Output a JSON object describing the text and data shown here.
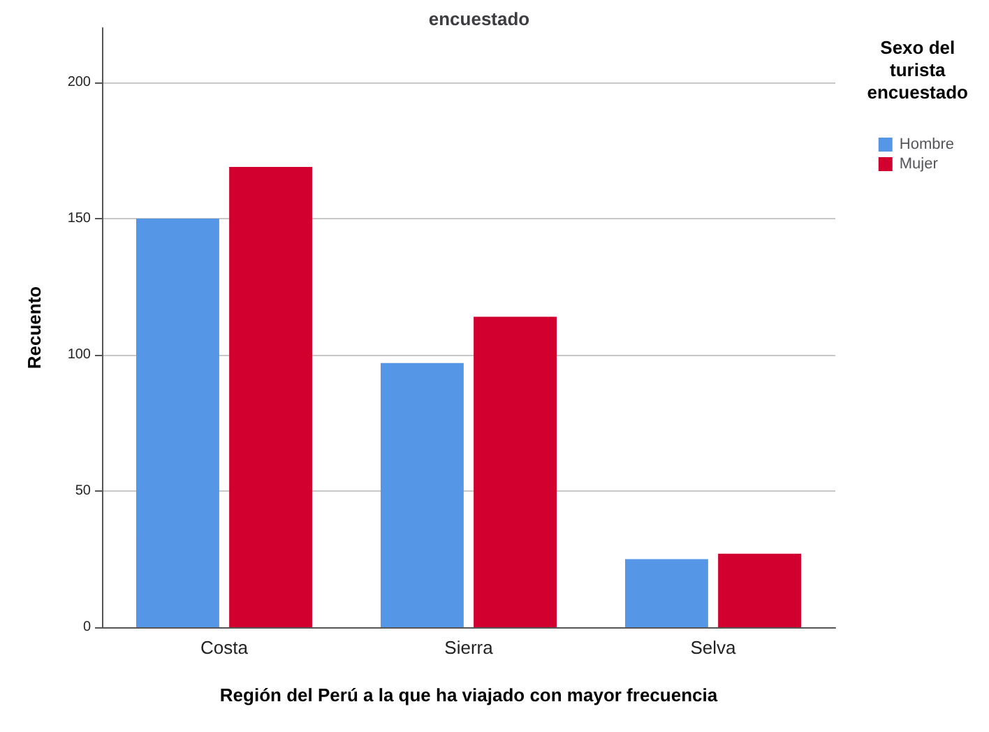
{
  "chart_data": {
    "type": "bar",
    "title": "encuestado",
    "xlabel": "Región del Perú a la que ha viajado con mayor frecuencia",
    "ylabel": "Recuento",
    "legend_title": "Sexo del\nturista\nencuestado",
    "categories": [
      "Costa",
      "Sierra",
      "Selva"
    ],
    "series": [
      {
        "name": "Hombre",
        "color": "#5596e6",
        "values": [
          150,
          97,
          25
        ]
      },
      {
        "name": "Mujer",
        "color": "#d2002e",
        "values": [
          169,
          114,
          27
        ]
      }
    ],
    "ylim": [
      0,
      220
    ],
    "yticks": [
      0,
      50,
      100,
      150,
      200
    ],
    "grid": "y",
    "legend": "top right"
  }
}
